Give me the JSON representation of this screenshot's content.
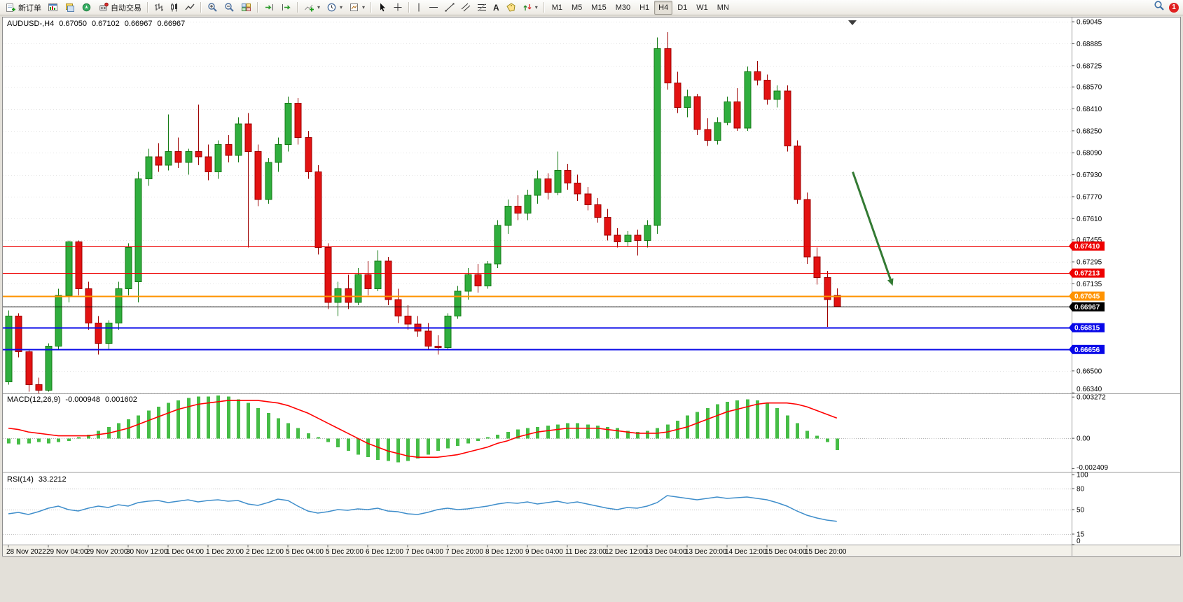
{
  "toolbar": {
    "new_order_label": "新订单",
    "autotrading_label": "自动交易",
    "timeframes": [
      "M1",
      "M5",
      "M15",
      "M30",
      "H1",
      "H4",
      "D1",
      "W1",
      "MN"
    ],
    "active_timeframe": "H4",
    "notification_count": "1"
  },
  "chart_header": {
    "symbol_period": "AUDUSD-,H4",
    "open": "0.67050",
    "high": "0.67102",
    "low": "0.66967",
    "close": "0.66967"
  },
  "chart_data": {
    "type": "candlestick",
    "symbol": "AUDUSD-",
    "timeframe": "H4",
    "price_axis": {
      "tick_labels": [
        "0.69045",
        "0.68885",
        "0.68725",
        "0.68570",
        "0.68410",
        "0.68250",
        "0.68090",
        "0.67930",
        "0.67770",
        "0.67610",
        "0.67455",
        "0.67295",
        "0.67135",
        "0.66975",
        "0.66815",
        "0.66655",
        "0.66500",
        "0.66340"
      ]
    },
    "time_axis": {
      "every_n_candles": 4,
      "labels": [
        "28 Nov 2022",
        "29 Nov 04:00",
        "29 Nov 20:00",
        "30 Nov 12:00",
        "1 Dec 04:00",
        "1 Dec 20:00",
        "2 Dec 12:00",
        "5 Dec 04:00",
        "5 Dec 20:00",
        "6 Dec 12:00",
        "7 Dec 04:00",
        "7 Dec 20:00",
        "8 Dec 12:00",
        "9 Dec 04:00",
        "11 Dec 23:00",
        "12 Dec 12:00",
        "13 Dec 04:00",
        "13 Dec 20:00",
        "14 Dec 12:00",
        "15 Dec 04:00",
        "15 Dec 20:00"
      ]
    },
    "candles": [
      [
        0.6642,
        0.6694,
        0.664,
        0.669
      ],
      [
        0.669,
        0.6692,
        0.666,
        0.6664
      ],
      [
        0.6664,
        0.6666,
        0.6635,
        0.664
      ],
      [
        0.664,
        0.6645,
        0.6633,
        0.6636
      ],
      [
        0.6636,
        0.667,
        0.6635,
        0.6668
      ],
      [
        0.6668,
        0.671,
        0.6666,
        0.6705
      ],
      [
        0.6705,
        0.6745,
        0.67,
        0.6744
      ],
      [
        0.6744,
        0.6745,
        0.6705,
        0.671
      ],
      [
        0.671,
        0.6715,
        0.668,
        0.6685
      ],
      [
        0.6685,
        0.669,
        0.6662,
        0.667
      ],
      [
        0.667,
        0.6687,
        0.6665,
        0.6685
      ],
      [
        0.6685,
        0.6715,
        0.668,
        0.671
      ],
      [
        0.671,
        0.6743,
        0.6705,
        0.674
      ],
      [
        0.6715,
        0.6795,
        0.67,
        0.679
      ],
      [
        0.679,
        0.6812,
        0.6785,
        0.6806
      ],
      [
        0.6806,
        0.6816,
        0.6795,
        0.68
      ],
      [
        0.68,
        0.6837,
        0.6796,
        0.681
      ],
      [
        0.681,
        0.682,
        0.6798,
        0.6802
      ],
      [
        0.6802,
        0.6812,
        0.6793,
        0.681
      ],
      [
        0.681,
        0.6844,
        0.68,
        0.6806
      ],
      [
        0.6806,
        0.6815,
        0.6789,
        0.6795
      ],
      [
        0.6795,
        0.6818,
        0.679,
        0.6815
      ],
      [
        0.6815,
        0.6822,
        0.6802,
        0.6807
      ],
      [
        0.6807,
        0.6835,
        0.6802,
        0.683
      ],
      [
        0.683,
        0.6838,
        0.674,
        0.681
      ],
      [
        0.681,
        0.6815,
        0.677,
        0.6775
      ],
      [
        0.6775,
        0.6805,
        0.6772,
        0.6802
      ],
      [
        0.6802,
        0.682,
        0.6795,
        0.6815
      ],
      [
        0.6815,
        0.685,
        0.681,
        0.6845
      ],
      [
        0.6845,
        0.6849,
        0.6815,
        0.682
      ],
      [
        0.682,
        0.6825,
        0.679,
        0.6795
      ],
      [
        0.6795,
        0.68,
        0.6735,
        0.674
      ],
      [
        0.674,
        0.6743,
        0.6695,
        0.67
      ],
      [
        0.67,
        0.6715,
        0.669,
        0.671
      ],
      [
        0.671,
        0.672,
        0.6695,
        0.67
      ],
      [
        0.67,
        0.6725,
        0.6698,
        0.672
      ],
      [
        0.672,
        0.673,
        0.6705,
        0.671
      ],
      [
        0.671,
        0.6738,
        0.6708,
        0.673
      ],
      [
        0.673,
        0.6733,
        0.6698,
        0.6702
      ],
      [
        0.6702,
        0.671,
        0.6685,
        0.669
      ],
      [
        0.669,
        0.6698,
        0.668,
        0.6684
      ],
      [
        0.6684,
        0.669,
        0.6675,
        0.6679
      ],
      [
        0.6679,
        0.6685,
        0.6665,
        0.6668
      ],
      [
        0.6668,
        0.6676,
        0.6662,
        0.6667
      ],
      [
        0.6667,
        0.6692,
        0.6665,
        0.669
      ],
      [
        0.669,
        0.6712,
        0.6688,
        0.6708
      ],
      [
        0.6708,
        0.6725,
        0.6702,
        0.672
      ],
      [
        0.672,
        0.6728,
        0.6707,
        0.6712
      ],
      [
        0.6712,
        0.673,
        0.671,
        0.6728
      ],
      [
        0.6728,
        0.676,
        0.6725,
        0.6756
      ],
      [
        0.6756,
        0.6775,
        0.675,
        0.677
      ],
      [
        0.677,
        0.6778,
        0.676,
        0.6765
      ],
      [
        0.6765,
        0.6782,
        0.676,
        0.6778
      ],
      [
        0.6778,
        0.6796,
        0.6772,
        0.679
      ],
      [
        0.679,
        0.6794,
        0.6775,
        0.678
      ],
      [
        0.678,
        0.681,
        0.6778,
        0.6796
      ],
      [
        0.6796,
        0.6801,
        0.6782,
        0.6787
      ],
      [
        0.6787,
        0.6793,
        0.6774,
        0.6779
      ],
      [
        0.6779,
        0.6784,
        0.6767,
        0.6771
      ],
      [
        0.6771,
        0.6776,
        0.6758,
        0.6762
      ],
      [
        0.6762,
        0.6768,
        0.6745,
        0.6749
      ],
      [
        0.6749,
        0.6754,
        0.674,
        0.6744
      ],
      [
        0.6744,
        0.6752,
        0.6741,
        0.6749
      ],
      [
        0.6749,
        0.6753,
        0.6734,
        0.6745
      ],
      [
        0.6745,
        0.676,
        0.674,
        0.6756
      ],
      [
        0.6756,
        0.6893,
        0.675,
        0.6885
      ],
      [
        0.6885,
        0.6897,
        0.6855,
        0.686
      ],
      [
        0.686,
        0.6868,
        0.6838,
        0.6842
      ],
      [
        0.6842,
        0.6855,
        0.6835,
        0.685
      ],
      [
        0.685,
        0.6852,
        0.6822,
        0.6826
      ],
      [
        0.6826,
        0.6834,
        0.6814,
        0.6818
      ],
      [
        0.6818,
        0.6835,
        0.6815,
        0.6831
      ],
      [
        0.6831,
        0.685,
        0.6829,
        0.6846
      ],
      [
        0.6846,
        0.6856,
        0.6825,
        0.6827
      ],
      [
        0.6827,
        0.6872,
        0.6825,
        0.6868
      ],
      [
        0.6868,
        0.6876,
        0.6858,
        0.6862
      ],
      [
        0.6862,
        0.6866,
        0.6844,
        0.6848
      ],
      [
        0.6848,
        0.6858,
        0.6842,
        0.6854
      ],
      [
        0.6854,
        0.6858,
        0.681,
        0.6814
      ],
      [
        0.6814,
        0.6818,
        0.6772,
        0.6775
      ],
      [
        0.6775,
        0.678,
        0.6728,
        0.6733
      ],
      [
        0.6733,
        0.674,
        0.6713,
        0.6718
      ],
      [
        0.6718,
        0.6723,
        0.6682,
        0.6702
      ],
      [
        0.6705,
        0.67102,
        0.66967,
        0.66967
      ]
    ],
    "hlines": [
      {
        "price": 0.6741,
        "label": "0.67410",
        "color": "#ee0000",
        "width": 1
      },
      {
        "price": 0.67213,
        "label": "0.67213",
        "color": "#ee0000",
        "width": 1
      },
      {
        "price": 0.67045,
        "label": "0.67045",
        "color": "#ff9300",
        "width": 2
      },
      {
        "price": 0.66967,
        "label": "0.66967",
        "color": "#000000",
        "width": 1
      },
      {
        "price": 0.66815,
        "label": "0.66815",
        "color": "#0808e8",
        "width": 2
      },
      {
        "price": 0.66656,
        "label": "0.66656",
        "color": "#0808e8",
        "width": 2
      }
    ],
    "trend_arrow": {
      "from_candle": 84.6,
      "from_price": 0.6795,
      "to_candle": 88.6,
      "to_price": 0.6712,
      "color": "#337a33",
      "width": 3
    },
    "indicators": {
      "macd": {
        "name": "MACD(12,26,9)",
        "value_main": "-0.000948",
        "value_signal": "0.001602",
        "axis_tick_labels": [
          "0.003272",
          "0.00",
          "-0.002409"
        ],
        "histogram": [
          -0.0004,
          -0.0005,
          -0.0004,
          -0.0003,
          -0.0004,
          -0.0003,
          -0.0002,
          0.0001,
          0.0003,
          0.0006,
          0.0009,
          0.0012,
          0.0015,
          0.0018,
          0.0022,
          0.0025,
          0.0028,
          0.003,
          0.0032,
          0.0033,
          0.0033,
          0.0034,
          0.0033,
          0.0031,
          0.0028,
          0.0024,
          0.002,
          0.0016,
          0.0012,
          0.0008,
          0.0004,
          0.0001,
          -0.0003,
          -0.0007,
          -0.001,
          -0.0013,
          -0.0015,
          -0.0017,
          -0.0018,
          -0.0019,
          -0.0018,
          -0.0016,
          -0.0013,
          -0.001,
          -0.0008,
          -0.0006,
          -0.0004,
          -0.0002,
          0.0001,
          0.0003,
          0.0005,
          0.0007,
          0.0008,
          0.0009,
          0.001,
          0.0011,
          0.0012,
          0.0012,
          0.0011,
          0.001,
          0.0009,
          0.0008,
          0.0006,
          0.0005,
          0.0006,
          0.0008,
          0.0011,
          0.0014,
          0.0018,
          0.0021,
          0.0024,
          0.0027,
          0.0029,
          0.003,
          0.0031,
          0.003,
          0.0028,
          0.0024,
          0.0018,
          0.0012,
          0.0006,
          0.0002,
          -0.0003,
          -0.000948
        ],
        "signal": [
          0.0008,
          0.0007,
          0.0005,
          0.0004,
          0.0003,
          0.0002,
          0.0002,
          0.0002,
          0.0002,
          0.0003,
          0.0004,
          0.0006,
          0.0008,
          0.0011,
          0.0014,
          0.0017,
          0.002,
          0.0023,
          0.0025,
          0.0027,
          0.0028,
          0.0029,
          0.003,
          0.003,
          0.003,
          0.003,
          0.0029,
          0.0028,
          0.0026,
          0.0023,
          0.002,
          0.0016,
          0.0012,
          0.0008,
          0.0004,
          0.0,
          -0.0004,
          -0.0007,
          -0.001,
          -0.0012,
          -0.0014,
          -0.0015,
          -0.0015,
          -0.0015,
          -0.0014,
          -0.0013,
          -0.0011,
          -0.0009,
          -0.0007,
          -0.0004,
          -0.0002,
          0.0001,
          0.0003,
          0.0005,
          0.0006,
          0.0007,
          0.0008,
          0.0008,
          0.0008,
          0.0008,
          0.0007,
          0.0006,
          0.0005,
          0.0004,
          0.0004,
          0.0004,
          0.0005,
          0.0007,
          0.0009,
          0.0012,
          0.0015,
          0.0018,
          0.0021,
          0.0023,
          0.0025,
          0.0027,
          0.0028,
          0.0028,
          0.0028,
          0.0027,
          0.0025,
          0.0022,
          0.0019,
          0.001602
        ]
      },
      "rsi": {
        "name": "RSI(14)",
        "value": "33.2212",
        "axis_tick_labels": [
          "100",
          "80",
          "50",
          "15",
          "0"
        ],
        "levels": [
          80,
          50,
          15
        ],
        "values": [
          44,
          46,
          43,
          47,
          52,
          55,
          50,
          48,
          52,
          55,
          53,
          57,
          55,
          60,
          62,
          63,
          60,
          62,
          64,
          61,
          63,
          64,
          62,
          63,
          58,
          56,
          60,
          65,
          63,
          55,
          48,
          45,
          47,
          50,
          49,
          51,
          50,
          52,
          48,
          47,
          44,
          43,
          46,
          50,
          52,
          50,
          51,
          53,
          55,
          58,
          60,
          59,
          61,
          58,
          60,
          62,
          59,
          61,
          58,
          55,
          52,
          50,
          53,
          52,
          55,
          60,
          70,
          68,
          66,
          64,
          66,
          68,
          66,
          67,
          68,
          66,
          64,
          60,
          55,
          48,
          42,
          38,
          35,
          33.2212
        ]
      }
    },
    "colors": {
      "bull_fill": "#2fae3e",
      "bull_stroke": "#157a15",
      "bear_fill": "#e31212",
      "bear_stroke": "#9e0000",
      "macd_hist": "#46bd46",
      "macd_signal": "#ff0000",
      "rsi_line": "#3f8ecb",
      "grid": "#e4e4e4",
      "separator": "#9b9b9b",
      "axis_text": "#000000",
      "bg": "#ffffff",
      "axis_bg": "#f3f1ea"
    }
  }
}
